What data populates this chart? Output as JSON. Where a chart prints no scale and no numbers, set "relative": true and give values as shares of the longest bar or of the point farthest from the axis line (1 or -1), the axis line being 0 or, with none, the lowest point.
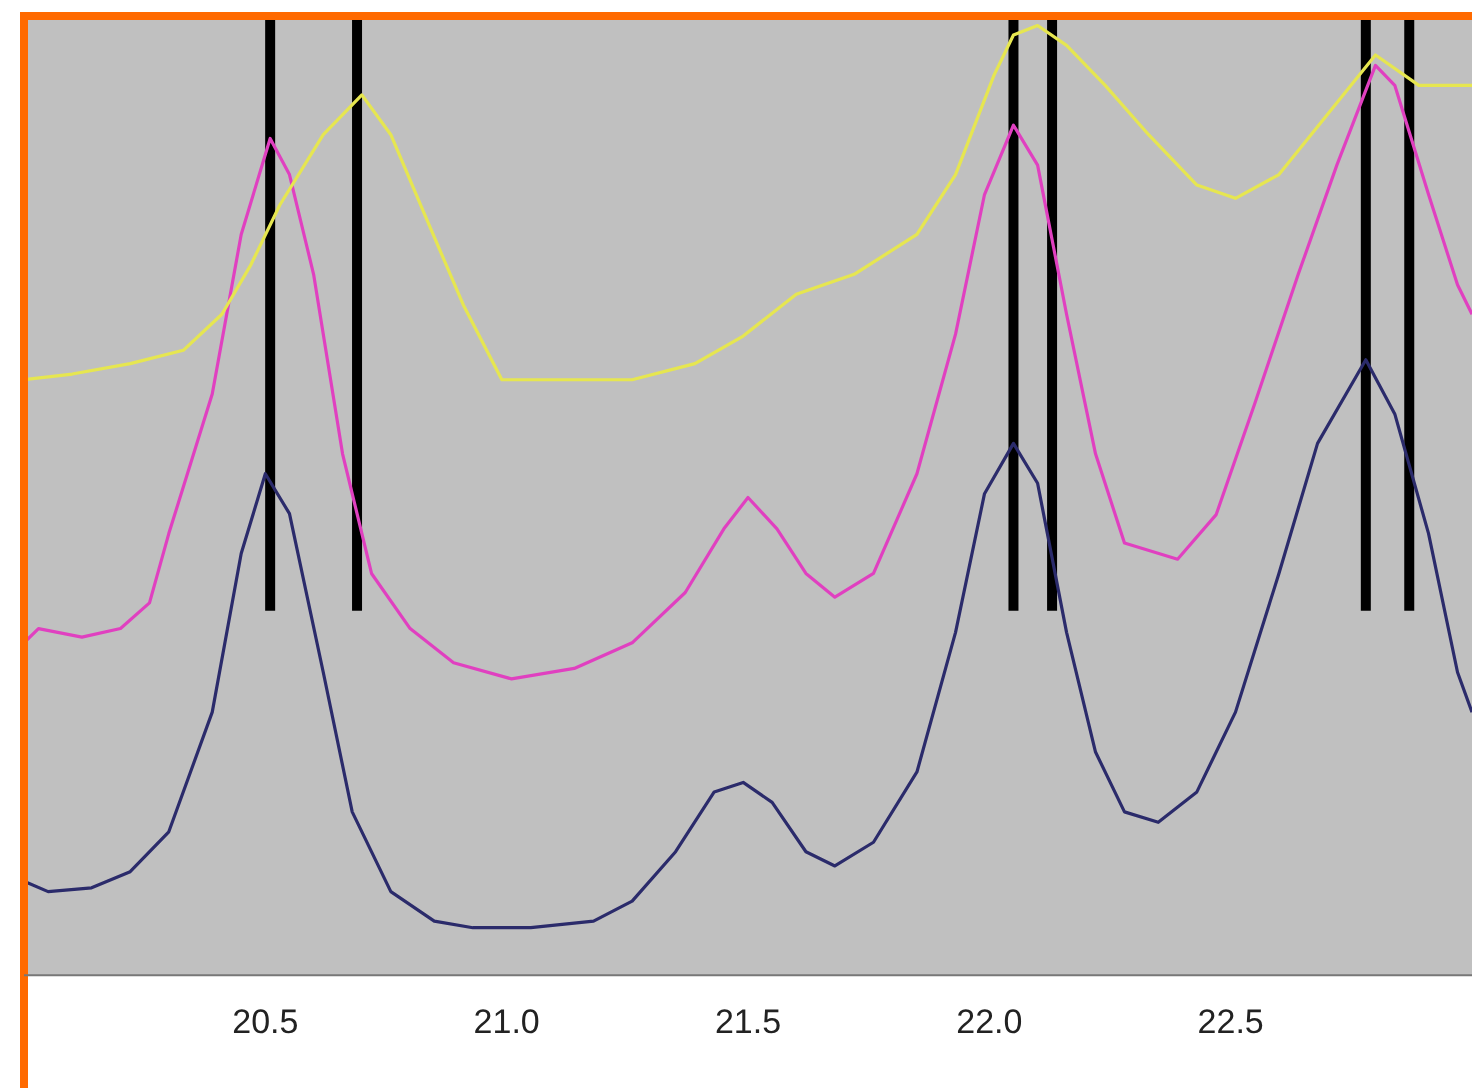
{
  "chart_data": {
    "type": "line",
    "relative": true,
    "grid": false,
    "legend": false,
    "tick_labels": "x",
    "marker": "none",
    "line_style": "solid",
    "xlim": [
      20.0,
      23.0
    ],
    "xticks": [
      20.5,
      {
        "value": 21,
        "label": "21.0"
      },
      21.5,
      {
        "value": 22,
        "label": "22.0"
      },
      22.5
    ],
    "series": [
      {
        "color": "#e6e650",
        "x": [
          20.0,
          20.1,
          20.22,
          20.33,
          20.41,
          20.47,
          20.53,
          20.62,
          20.7,
          20.76,
          20.83,
          20.91,
          20.99,
          21.1,
          21.26,
          21.39,
          21.49,
          21.6,
          21.72,
          21.85,
          21.93,
          22.01,
          22.05,
          22.1,
          22.16,
          22.24,
          22.33,
          22.43,
          22.51,
          22.6,
          22.7,
          22.8,
          22.89,
          22.97,
          23.0
        ],
        "values": [
          0.627,
          0.633,
          0.644,
          0.658,
          0.696,
          0.748,
          0.811,
          0.885,
          0.927,
          0.885,
          0.801,
          0.706,
          0.627,
          0.627,
          0.627,
          0.644,
          0.673,
          0.717,
          0.738,
          0.78,
          0.843,
          0.948,
          0.99,
          1.0,
          0.979,
          0.937,
          0.885,
          0.832,
          0.818,
          0.843,
          0.906,
          0.969,
          0.937,
          0.937,
          0.937
        ]
      },
      {
        "color": "#e040c0",
        "x": [
          20.0,
          20.03,
          20.12,
          20.2,
          20.26,
          20.3,
          20.39,
          20.45,
          20.51,
          20.55,
          20.6,
          20.66,
          20.72,
          20.8,
          20.89,
          21.01,
          21.14,
          21.26,
          21.37,
          21.45,
          21.5,
          21.56,
          21.62,
          21.68,
          21.76,
          21.85,
          21.93,
          21.99,
          22.05,
          22.1,
          22.16,
          22.22,
          22.28,
          22.39,
          22.47,
          22.55,
          22.64,
          22.72,
          22.8,
          22.84,
          22.91,
          22.97,
          23.0
        ],
        "values": [
          0.35,
          0.365,
          0.356,
          0.365,
          0.392,
          0.465,
          0.612,
          0.78,
          0.881,
          0.843,
          0.738,
          0.549,
          0.423,
          0.365,
          0.329,
          0.312,
          0.323,
          0.35,
          0.403,
          0.47,
          0.503,
          0.47,
          0.423,
          0.398,
          0.423,
          0.528,
          0.675,
          0.822,
          0.895,
          0.853,
          0.696,
          0.549,
          0.455,
          0.438,
          0.485,
          0.602,
          0.738,
          0.853,
          0.958,
          0.937,
          0.822,
          0.727,
          0.696
        ]
      },
      {
        "color": "#2b2b6b",
        "x": [
          20.0,
          20.05,
          20.14,
          20.22,
          20.3,
          20.39,
          20.45,
          20.5,
          20.55,
          20.62,
          20.68,
          20.76,
          20.85,
          20.93,
          21.05,
          21.18,
          21.26,
          21.35,
          21.43,
          21.49,
          21.55,
          21.62,
          21.68,
          21.76,
          21.85,
          21.93,
          21.99,
          22.05,
          22.1,
          22.16,
          22.22,
          22.28,
          22.35,
          22.43,
          22.51,
          22.6,
          22.68,
          22.78,
          22.84,
          22.91,
          22.97,
          23.0
        ],
        "values": [
          0.099,
          0.088,
          0.092,
          0.109,
          0.151,
          0.277,
          0.444,
          0.528,
          0.486,
          0.319,
          0.172,
          0.088,
          0.057,
          0.05,
          0.05,
          0.057,
          0.078,
          0.13,
          0.193,
          0.203,
          0.182,
          0.13,
          0.115,
          0.14,
          0.214,
          0.361,
          0.507,
          0.56,
          0.518,
          0.361,
          0.235,
          0.172,
          0.161,
          0.193,
          0.277,
          0.423,
          0.56,
          0.648,
          0.591,
          0.465,
          0.319,
          0.277
        ]
      }
    ],
    "ref_lines": [
      {
        "axis": "x",
        "value": 20.51,
        "color": "#000000"
      },
      {
        "axis": "x",
        "value": 20.69,
        "color": "#000000"
      },
      {
        "axis": "x",
        "value": 22.05,
        "color": "#000000"
      },
      {
        "axis": "x",
        "value": 22.13,
        "color": "#000000"
      },
      {
        "axis": "x",
        "value": 22.78,
        "color": "#000000"
      },
      {
        "axis": "x",
        "value": 22.87,
        "color": "#000000"
      }
    ]
  }
}
